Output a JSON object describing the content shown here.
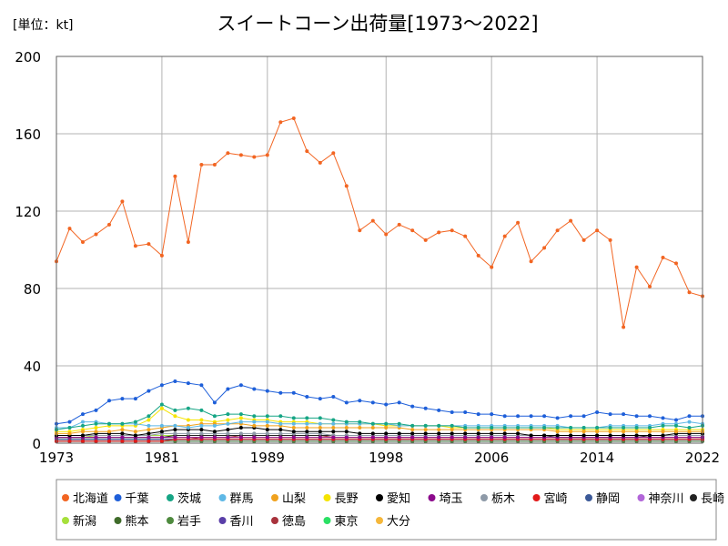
{
  "unit_label": "[単位：kt]",
  "chart_data": {
    "type": "line",
    "title": "スイートコーン出荷量[1973～2022]",
    "xlabel": "",
    "ylabel": "",
    "xlim": [
      1973,
      2022
    ],
    "ylim": [
      0,
      200
    ],
    "x_ticks": [
      1973,
      1981,
      1989,
      1998,
      2006,
      2014,
      2022
    ],
    "y_ticks": [
      0,
      40,
      80,
      120,
      160,
      200
    ],
    "grid": true,
    "legend_position": "bottom",
    "x": [
      1973,
      1974,
      1975,
      1976,
      1977,
      1978,
      1979,
      1980,
      1981,
      1982,
      1983,
      1984,
      1985,
      1986,
      1987,
      1988,
      1989,
      1990,
      1991,
      1992,
      1993,
      1994,
      1995,
      1996,
      1997,
      1998,
      1999,
      2000,
      2001,
      2002,
      2003,
      2004,
      2005,
      2006,
      2007,
      2008,
      2009,
      2010,
      2011,
      2012,
      2013,
      2014,
      2015,
      2016,
      2017,
      2018,
      2019,
      2020,
      2021,
      2022
    ],
    "series": [
      {
        "name": "北海道",
        "color": "#F26522",
        "values": [
          94,
          111,
          104,
          108,
          113,
          125,
          102,
          103,
          97,
          138,
          104,
          144,
          144,
          150,
          149,
          148,
          149,
          166,
          168,
          151,
          145,
          150,
          133,
          110,
          115,
          108,
          113,
          110,
          105,
          109,
          110,
          107,
          97,
          91,
          107,
          114,
          94,
          101,
          110,
          115,
          105,
          110,
          105,
          60,
          91,
          81,
          96,
          93,
          78,
          76
        ]
      },
      {
        "name": "千葉",
        "color": "#1E5FD9",
        "values": [
          10,
          11,
          15,
          17,
          22,
          23,
          23,
          27,
          30,
          32,
          31,
          30,
          21,
          28,
          30,
          28,
          27,
          26,
          26,
          24,
          23,
          24,
          21,
          22,
          21,
          20,
          21,
          19,
          18,
          17,
          16,
          16,
          15,
          15,
          14,
          14,
          14,
          14,
          13,
          14,
          14,
          16,
          15,
          15,
          14,
          14,
          13,
          12,
          14,
          14
        ]
      },
      {
        "name": "茨城",
        "color": "#16A585",
        "values": [
          7,
          8,
          9,
          10,
          10,
          10,
          11,
          14,
          20,
          17,
          18,
          17,
          14,
          15,
          15,
          14,
          14,
          14,
          13,
          13,
          13,
          12,
          11,
          11,
          10,
          10,
          10,
          9,
          9,
          9,
          9,
          8,
          8,
          8,
          8,
          8,
          8,
          8,
          8,
          8,
          8,
          8,
          8,
          8,
          8,
          8,
          9,
          9,
          8,
          9
        ]
      },
      {
        "name": "群馬",
        "color": "#5EB8E6",
        "values": [
          8,
          8,
          11,
          11,
          10,
          10,
          10,
          9,
          9,
          9,
          8,
          9,
          9,
          10,
          11,
          11,
          11,
          10,
          10,
          10,
          10,
          10,
          10,
          10,
          10,
          10,
          9,
          9,
          9,
          9,
          9,
          9,
          9,
          9,
          9,
          9,
          9,
          9,
          9,
          8,
          8,
          8,
          9,
          9,
          9,
          9,
          10,
          10,
          11,
          10
        ]
      },
      {
        "name": "山梨",
        "color": "#F0A21E",
        "values": [
          5,
          5,
          6,
          6,
          6,
          7,
          6,
          7,
          8,
          9,
          9,
          10,
          10,
          10,
          10,
          9,
          9,
          9,
          8,
          8,
          8,
          8,
          8,
          8,
          8,
          8,
          8,
          7,
          7,
          7,
          7,
          7,
          7,
          7,
          7,
          7,
          7,
          7,
          6,
          6,
          6,
          6,
          6,
          6,
          6,
          6,
          6,
          6,
          6,
          6
        ]
      },
      {
        "name": "長野",
        "color": "#F5E400",
        "values": [
          6,
          6,
          7,
          8,
          9,
          9,
          9,
          12,
          18,
          14,
          12,
          12,
          11,
          12,
          13,
          12,
          12,
          11,
          11,
          11,
          10,
          10,
          10,
          10,
          10,
          9,
          9,
          9,
          9,
          9,
          8,
          8,
          8,
          8,
          8,
          8,
          8,
          8,
          7,
          7,
          7,
          7,
          7,
          7,
          7,
          7,
          7,
          7,
          7,
          7
        ]
      },
      {
        "name": "愛知",
        "color": "#000000",
        "values": [
          4,
          4,
          4,
          5,
          5,
          5,
          4,
          5,
          6,
          7,
          7,
          7,
          6,
          7,
          8,
          8,
          7,
          7,
          6,
          6,
          6,
          6,
          6,
          5,
          5,
          5,
          5,
          5,
          5,
          5,
          5,
          5,
          5,
          5,
          5,
          5,
          4,
          4,
          4,
          4,
          4,
          4,
          4,
          4,
          4,
          4,
          4,
          5,
          5,
          5
        ]
      },
      {
        "name": "埼玉",
        "color": "#8C0A8C",
        "values": [
          3,
          3,
          3,
          3,
          3,
          3,
          3,
          3,
          3,
          3,
          3,
          3,
          3,
          3,
          3,
          3,
          3,
          3,
          3,
          3,
          3,
          3,
          3,
          3,
          3,
          3,
          3,
          3,
          3,
          3,
          3,
          3,
          3,
          3,
          3,
          3,
          3,
          3,
          3,
          3,
          3,
          3,
          3,
          3,
          3,
          3,
          3,
          3,
          3,
          3
        ]
      },
      {
        "name": "栃木",
        "color": "#8E9AA8",
        "values": [
          4,
          4,
          4,
          4,
          4,
          4,
          4,
          4,
          5,
          5,
          5,
          5,
          5,
          5,
          5,
          5,
          5,
          5,
          5,
          5,
          5,
          4,
          4,
          4,
          4,
          4,
          4,
          4,
          4,
          4,
          4,
          4,
          4,
          4,
          4,
          4,
          4,
          4,
          4,
          4,
          4,
          4,
          4,
          4,
          4,
          4,
          4,
          4,
          4,
          4
        ]
      },
      {
        "name": "宮崎",
        "color": "#E21A1A",
        "values": [
          1,
          1,
          1,
          1,
          1,
          1,
          1,
          1,
          1,
          2,
          2,
          2,
          2,
          2,
          2,
          2,
          2,
          2,
          2,
          2,
          2,
          2,
          2,
          2,
          2,
          2,
          2,
          2,
          2,
          2,
          2,
          2,
          2,
          2,
          2,
          2,
          2,
          2,
          2,
          2,
          2,
          2,
          2,
          2,
          2,
          2,
          2,
          2,
          2,
          2
        ]
      },
      {
        "name": "静岡",
        "color": "#3B5998",
        "values": [
          2,
          2,
          2,
          2,
          2,
          2,
          2,
          2,
          2,
          2,
          2,
          2,
          2,
          2,
          2,
          2,
          2,
          2,
          2,
          2,
          2,
          2,
          2,
          2,
          2,
          2,
          2,
          2,
          2,
          2,
          2,
          2,
          2,
          2,
          2,
          2,
          2,
          2,
          2,
          2,
          2,
          2,
          2,
          2,
          2,
          2,
          2,
          2,
          2,
          2
        ]
      },
      {
        "name": "神奈川",
        "color": "#B266D9",
        "values": [
          2,
          2,
          2,
          2,
          2,
          2,
          2,
          2,
          2,
          2,
          2,
          2,
          2,
          2,
          2,
          2,
          2,
          2,
          2,
          2,
          2,
          2,
          2,
          2,
          2,
          2,
          2,
          2,
          2,
          2,
          2,
          2,
          2,
          2,
          2,
          2,
          2,
          2,
          2,
          2,
          2,
          2,
          2,
          2,
          2,
          2,
          2,
          2,
          2,
          2
        ]
      },
      {
        "name": "長崎",
        "color": "#222222",
        "values": [
          3,
          3,
          3,
          3,
          3,
          3,
          3,
          3,
          3,
          4,
          4,
          4,
          4,
          4,
          4,
          4,
          4,
          4,
          4,
          4,
          4,
          4,
          4,
          4,
          4,
          4,
          4,
          4,
          4,
          4,
          4,
          4,
          4,
          4,
          4,
          4,
          4,
          4,
          3,
          3,
          3,
          3,
          3,
          3,
          3,
          4,
          4,
          4,
          4,
          4
        ]
      },
      {
        "name": "新潟",
        "color": "#A6E03B",
        "values": [
          3,
          3,
          3,
          4,
          4,
          4,
          4,
          4,
          4,
          4,
          4,
          4,
          4,
          4,
          4,
          4,
          4,
          4,
          4,
          4,
          4,
          4,
          4,
          4,
          4,
          4,
          4,
          4,
          4,
          4,
          4,
          4,
          4,
          4,
          4,
          4,
          4,
          4,
          4,
          4,
          4,
          4,
          4,
          4,
          4,
          4,
          4,
          4,
          4,
          4
        ]
      },
      {
        "name": "熊本",
        "color": "#3F6B2A",
        "values": [
          2,
          2,
          2,
          2,
          2,
          2,
          2,
          2,
          2,
          2,
          2,
          2,
          2,
          2,
          2,
          2,
          2,
          2,
          2,
          2,
          2,
          2,
          2,
          2,
          2,
          2,
          2,
          2,
          2,
          2,
          2,
          2,
          2,
          2,
          2,
          2,
          2,
          2,
          2,
          2,
          2,
          2,
          2,
          2,
          2,
          2,
          2,
          2,
          2,
          2
        ]
      },
      {
        "name": "岩手",
        "color": "#4E8A3E",
        "values": [
          1,
          1,
          1,
          1,
          1,
          1,
          1,
          1,
          1,
          1,
          1,
          1,
          1,
          1,
          1,
          1,
          1,
          1,
          1,
          1,
          1,
          1,
          1,
          1,
          1,
          1,
          1,
          1,
          1,
          1,
          1,
          1,
          1,
          1,
          1,
          1,
          1,
          1,
          1,
          1,
          1,
          1,
          1,
          1,
          1,
          1,
          1,
          1,
          1,
          1
        ]
      },
      {
        "name": "香川",
        "color": "#5A3FA8",
        "values": [
          1,
          1,
          1,
          1,
          1,
          1,
          1,
          1,
          1,
          1,
          1,
          1,
          1,
          1,
          1,
          1,
          1,
          1,
          1,
          1,
          1,
          1,
          1,
          1,
          1,
          1,
          1,
          1,
          1,
          1,
          1,
          1,
          1,
          1,
          1,
          1,
          1,
          1,
          1,
          1,
          1,
          1,
          1,
          1,
          1,
          1,
          1,
          1,
          1,
          1
        ]
      },
      {
        "name": "徳島",
        "color": "#A8323C",
        "values": [
          1,
          1,
          1,
          1,
          1,
          1,
          1,
          1,
          1,
          2,
          2,
          3,
          3,
          3,
          4,
          4,
          4,
          4,
          4,
          4,
          4,
          3,
          3,
          3,
          3,
          3,
          3,
          3,
          3,
          3,
          3,
          3,
          3,
          3,
          3,
          3,
          3,
          3,
          3,
          3,
          3,
          3,
          3,
          3,
          3,
          3,
          3,
          3,
          3,
          3
        ]
      },
      {
        "name": "東京",
        "color": "#2BE064",
        "values": [
          2,
          2,
          2,
          2,
          2,
          2,
          2,
          2,
          2,
          2,
          2,
          2,
          2,
          2,
          2,
          2,
          2,
          2,
          2,
          2,
          2,
          2,
          2,
          2,
          2,
          2,
          2,
          2,
          2,
          2,
          2,
          2,
          2,
          2,
          2,
          2,
          2,
          2,
          2,
          2,
          2,
          2,
          2,
          2,
          2,
          2,
          2,
          2,
          2,
          2
        ]
      },
      {
        "name": "大分",
        "color": "#F5B73B",
        "values": [
          3,
          3,
          3,
          3,
          3,
          3,
          3,
          3,
          3,
          3,
          3,
          3,
          3,
          3,
          3,
          3,
          3,
          3,
          3,
          3,
          3,
          3,
          3,
          3,
          3,
          3,
          3,
          3,
          3,
          3,
          3,
          3,
          3,
          3,
          3,
          3,
          3,
          3,
          3,
          3,
          3,
          3,
          3,
          3,
          3,
          3,
          3,
          3,
          3,
          3
        ]
      }
    ]
  }
}
